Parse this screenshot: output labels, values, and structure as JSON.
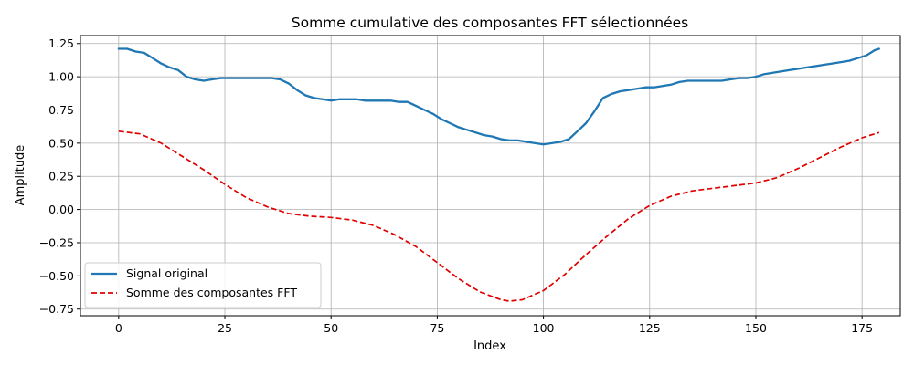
{
  "chart_data": {
    "type": "line",
    "title": "Somme cumulative des composantes FFT sélectionnées",
    "xlabel": "Index",
    "ylabel": "Amplitude",
    "xlim": [
      -9,
      184
    ],
    "ylim": [
      -0.8,
      1.31
    ],
    "xticks": [
      0,
      25,
      50,
      75,
      100,
      125,
      150,
      175
    ],
    "xtick_labels": [
      "0",
      "25",
      "50",
      "75",
      "100",
      "125",
      "150",
      "175"
    ],
    "yticks": [
      -0.75,
      -0.5,
      -0.25,
      0.0,
      0.25,
      0.5,
      0.75,
      1.0,
      1.25
    ],
    "ytick_labels": [
      "−0.75",
      "−0.50",
      "−0.25",
      "0.00",
      "0.25",
      "0.50",
      "0.75",
      "1.00",
      "1.25"
    ],
    "grid": true,
    "legend_position": "lower-left",
    "series": [
      {
        "name": "Signal original",
        "color": "#1f77b4",
        "style": "solid",
        "x": [
          0,
          2,
          4,
          6,
          8,
          10,
          12,
          14,
          16,
          18,
          20,
          22,
          24,
          26,
          28,
          30,
          32,
          34,
          36,
          38,
          40,
          42,
          44,
          46,
          48,
          50,
          52,
          54,
          56,
          58,
          60,
          62,
          64,
          66,
          68,
          70,
          72,
          74,
          76,
          78,
          80,
          82,
          84,
          86,
          88,
          90,
          92,
          94,
          96,
          98,
          100,
          102,
          104,
          106,
          108,
          110,
          112,
          114,
          116,
          118,
          120,
          122,
          124,
          126,
          128,
          130,
          132,
          134,
          136,
          138,
          140,
          142,
          144,
          146,
          148,
          150,
          152,
          154,
          156,
          158,
          160,
          162,
          164,
          166,
          168,
          170,
          172,
          174,
          176,
          178,
          179
        ],
        "y": [
          1.21,
          1.21,
          1.19,
          1.18,
          1.14,
          1.1,
          1.07,
          1.05,
          1.0,
          0.98,
          0.97,
          0.98,
          0.99,
          0.99,
          0.99,
          0.99,
          0.99,
          0.99,
          0.99,
          0.98,
          0.95,
          0.9,
          0.86,
          0.84,
          0.83,
          0.82,
          0.83,
          0.83,
          0.83,
          0.82,
          0.82,
          0.82,
          0.82,
          0.81,
          0.81,
          0.78,
          0.75,
          0.72,
          0.68,
          0.65,
          0.62,
          0.6,
          0.58,
          0.56,
          0.55,
          0.53,
          0.52,
          0.52,
          0.51,
          0.5,
          0.49,
          0.5,
          0.51,
          0.53,
          0.59,
          0.65,
          0.74,
          0.84,
          0.87,
          0.89,
          0.9,
          0.91,
          0.92,
          0.92,
          0.93,
          0.94,
          0.96,
          0.97,
          0.97,
          0.97,
          0.97,
          0.97,
          0.98,
          0.99,
          0.99,
          1.0,
          1.02,
          1.03,
          1.04,
          1.05,
          1.06,
          1.07,
          1.08,
          1.09,
          1.1,
          1.11,
          1.12,
          1.14,
          1.16,
          1.2,
          1.21
        ]
      },
      {
        "name": "Somme des composantes FFT",
        "color": "#e00000",
        "style": "dashed",
        "x": [
          0,
          5,
          10,
          15,
          20,
          25,
          30,
          35,
          40,
          45,
          50,
          55,
          60,
          65,
          70,
          75,
          80,
          85,
          90,
          92,
          95,
          100,
          105,
          110,
          115,
          120,
          125,
          130,
          135,
          140,
          145,
          150,
          155,
          160,
          165,
          170,
          175,
          179
        ],
        "y": [
          0.59,
          0.57,
          0.5,
          0.4,
          0.3,
          0.19,
          0.09,
          0.02,
          -0.03,
          -0.05,
          -0.06,
          -0.08,
          -0.12,
          -0.19,
          -0.28,
          -0.4,
          -0.52,
          -0.62,
          -0.68,
          -0.69,
          -0.68,
          -0.61,
          -0.49,
          -0.34,
          -0.2,
          -0.07,
          0.03,
          0.1,
          0.14,
          0.16,
          0.18,
          0.2,
          0.24,
          0.31,
          0.39,
          0.47,
          0.54,
          0.58
        ]
      }
    ]
  }
}
